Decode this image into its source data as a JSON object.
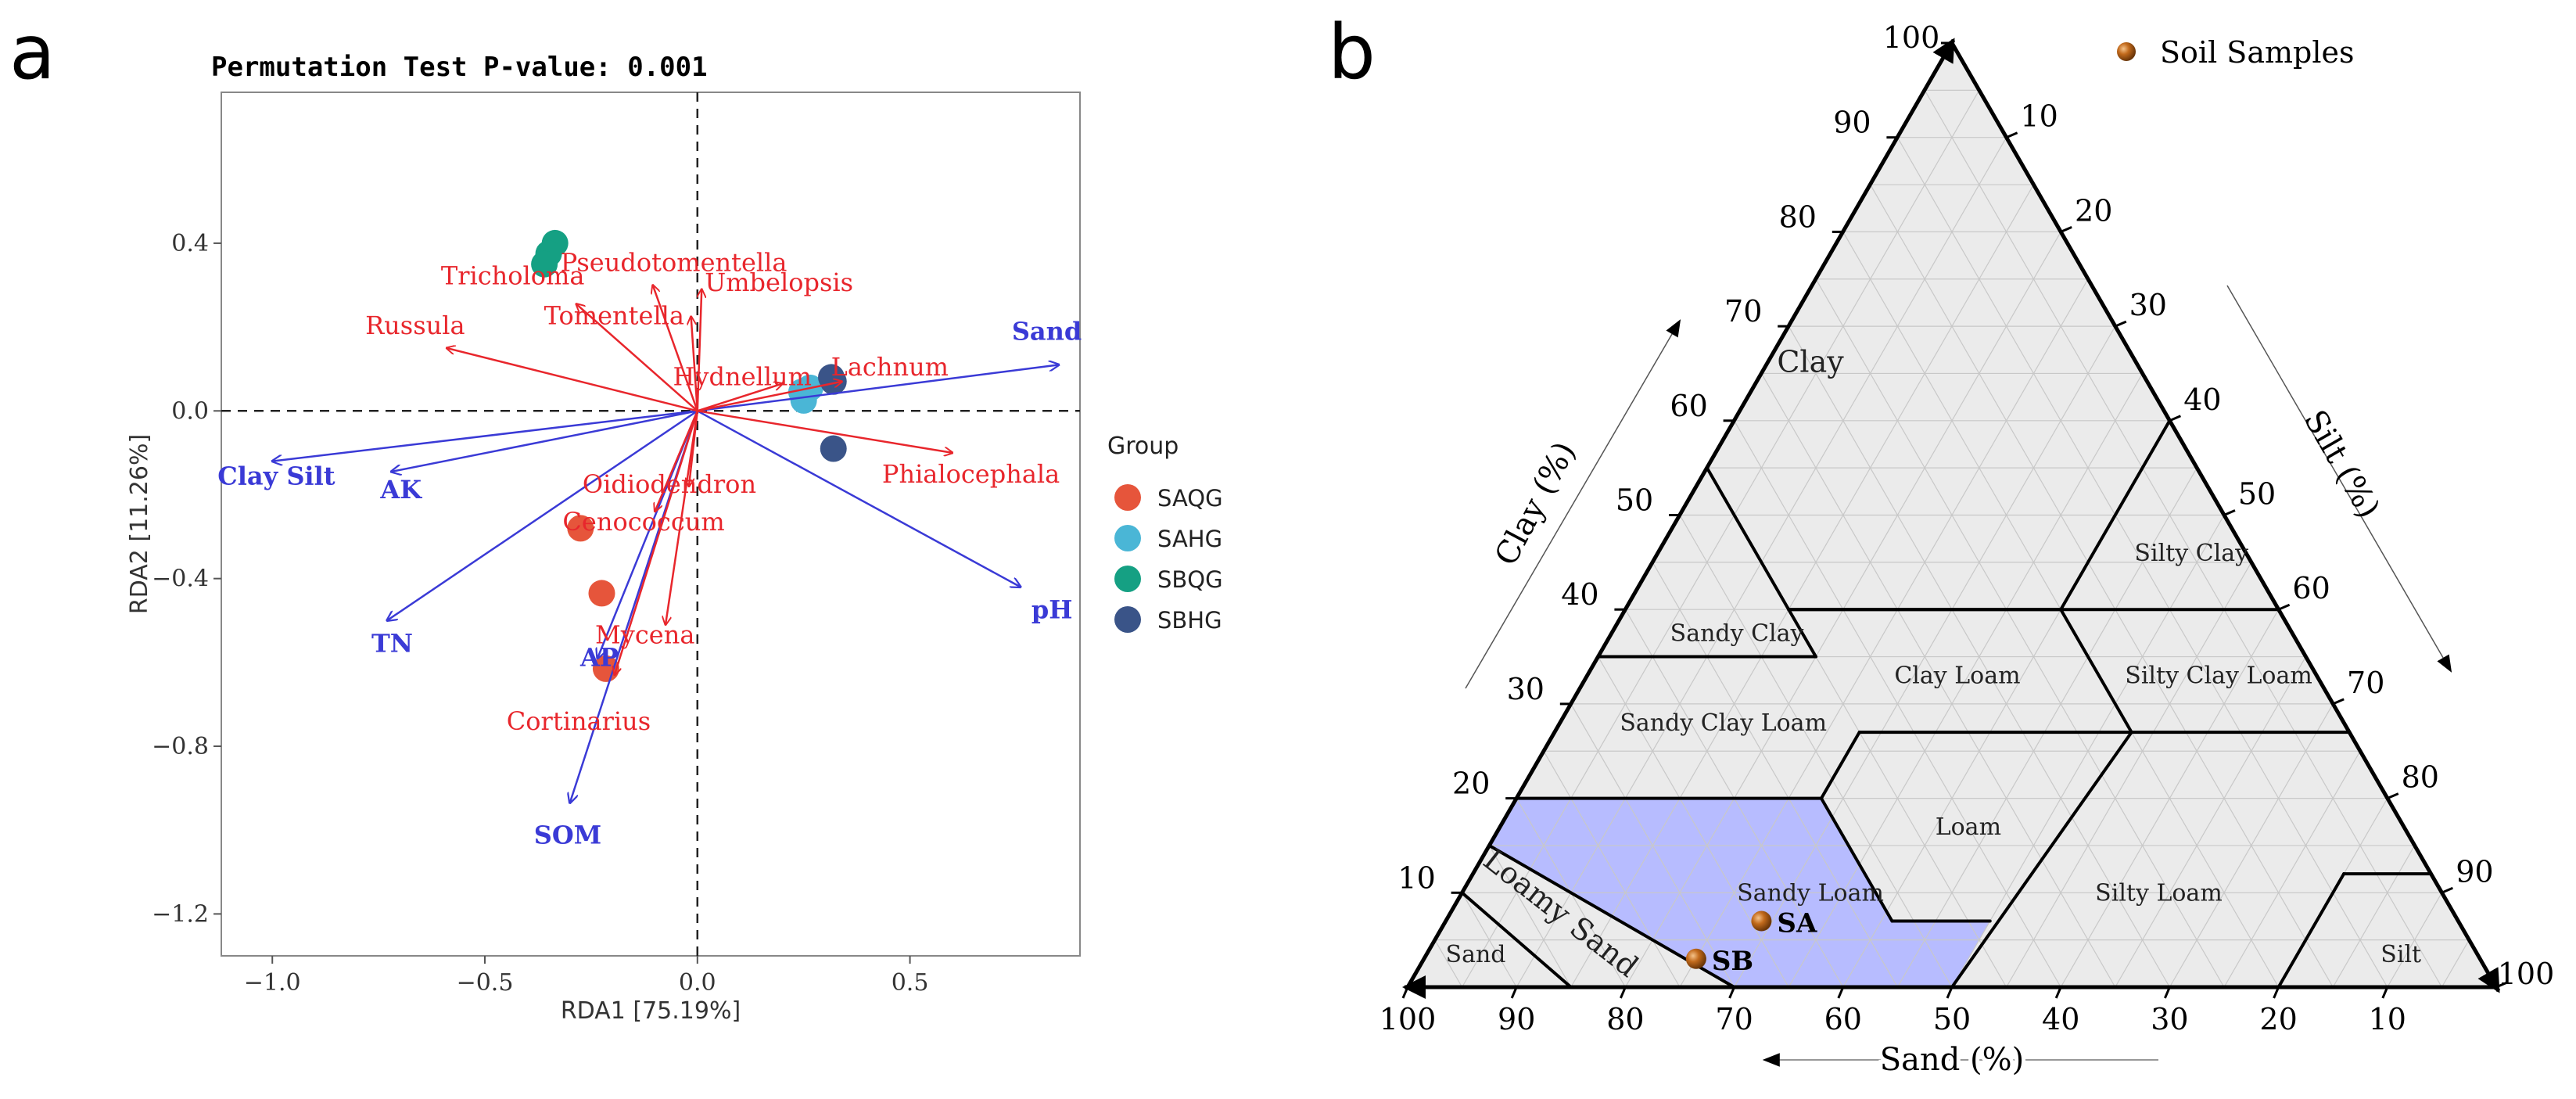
{
  "chart_data": [
    {
      "type": "scatter",
      "panel": "a",
      "title": "Permutation Test P-value: 0.001",
      "xlabel": "RDA1 [75.19%]",
      "ylabel": "RDA2 [11.26%]",
      "xlim": [
        -1.12,
        0.9
      ],
      "ylim": [
        -1.3,
        0.76
      ],
      "xticks": [
        -1.0,
        -0.5,
        0.0,
        0.5
      ],
      "xtick_labels": [
        "−1.0",
        "−0.5",
        "0.0",
        "0.5"
      ],
      "yticks": [
        0.4,
        0.0,
        -0.4,
        -0.8,
        -1.2
      ],
      "ytick_labels": [
        "0.4",
        "0.0",
        "−0.4",
        "−0.8",
        "−1.2"
      ],
      "reference_lines": {
        "x": 0,
        "y": 0,
        "style": "dashed"
      },
      "legend": {
        "title": "Group",
        "position": "right",
        "entries": [
          {
            "name": "SAQG",
            "color": "#e6553b"
          },
          {
            "name": "SAHG",
            "color": "#4ab6d6"
          },
          {
            "name": "SBQG",
            "color": "#15a083"
          },
          {
            "name": "SBHG",
            "color": "#3a5488"
          }
        ]
      },
      "points": [
        {
          "group": "SAQG",
          "x": -0.275,
          "y": -0.28
        },
        {
          "group": "SAQG",
          "x": -0.225,
          "y": -0.435
        },
        {
          "group": "SAQG",
          "x": -0.215,
          "y": -0.615
        },
        {
          "group": "SAHG",
          "x": 0.245,
          "y": 0.045
        },
        {
          "group": "SAHG",
          "x": 0.25,
          "y": 0.025
        },
        {
          "group": "SAHG",
          "x": 0.265,
          "y": 0.055
        },
        {
          "group": "SBQG",
          "x": -0.335,
          "y": 0.4
        },
        {
          "group": "SBQG",
          "x": -0.35,
          "y": 0.375
        },
        {
          "group": "SBQG",
          "x": -0.36,
          "y": 0.35
        },
        {
          "group": "SBHG",
          "x": 0.315,
          "y": 0.08
        },
        {
          "group": "SBHG",
          "x": 0.32,
          "y": 0.07
        },
        {
          "group": "SBHG",
          "x": 0.32,
          "y": -0.09
        }
      ],
      "species_color": "#e8262c",
      "species_vectors": [
        {
          "name": "Pseudotomentella",
          "x": -0.105,
          "y": 0.3
        },
        {
          "name": "Umbelopsis",
          "x": 0.01,
          "y": 0.29
        },
        {
          "name": "Tricholoma",
          "x": -0.285,
          "y": 0.255
        },
        {
          "name": "Russula",
          "x": -0.59,
          "y": 0.15
        },
        {
          "name": "Tomentella",
          "x": -0.015,
          "y": 0.225
        },
        {
          "name": "Hydnellum",
          "x": 0.2,
          "y": 0.065
        },
        {
          "name": "Lachnum",
          "x": 0.34,
          "y": 0.07
        },
        {
          "name": "Phialocephala",
          "x": 0.6,
          "y": -0.1
        },
        {
          "name": "Oidiodendron",
          "x": -0.02,
          "y": -0.18
        },
        {
          "name": "Cenococcum",
          "x": -0.1,
          "y": -0.24
        },
        {
          "name": "Mycena",
          "x": -0.075,
          "y": -0.51
        },
        {
          "name": "Cortinarius",
          "x": -0.195,
          "y": -0.63
        }
      ],
      "env_color": "#3a3ad6",
      "env_vectors": [
        {
          "name": "Sand",
          "x": 0.85,
          "y": 0.11
        },
        {
          "name": "pH",
          "x": 0.76,
          "y": -0.42
        },
        {
          "name": "Clay Silt",
          "x": -1.0,
          "y": -0.12
        },
        {
          "name": "AK",
          "x": -0.72,
          "y": -0.145
        },
        {
          "name": "TN",
          "x": -0.73,
          "y": -0.5
        },
        {
          "name": "AP",
          "x": -0.235,
          "y": -0.59
        },
        {
          "name": "SOM",
          "x": -0.3,
          "y": -0.935
        }
      ]
    },
    {
      "type": "ternary",
      "panel": "b",
      "axes": {
        "clay": {
          "title": "Clay (%)",
          "ticks": [
            10,
            20,
            30,
            40,
            50,
            60,
            70,
            80,
            90,
            100
          ]
        },
        "silt": {
          "title": "Silt (%)",
          "ticks": [
            10,
            20,
            30,
            40,
            50,
            60,
            70,
            80,
            90,
            100
          ]
        },
        "sand": {
          "title": "Sand (%)",
          "ticks": [
            100,
            90,
            80,
            70,
            60,
            50,
            40,
            30,
            20,
            10
          ]
        }
      },
      "regions": [
        "Clay",
        "Silty Clay",
        "Sandy Clay",
        "Clay Loam",
        "Silty Clay Loam",
        "Sandy Clay Loam",
        "Loam",
        "Sandy Loam",
        "Silty Loam",
        "Loamy Sand",
        "Sand",
        "Silt"
      ],
      "highlight_region": "Sandy Loam",
      "highlight_color": "#aab0ff",
      "sample_color": "#c26a1c",
      "legend": "Soil Samples",
      "samples": [
        {
          "name": "SA",
          "sand": 64,
          "silt": 29,
          "clay": 7
        },
        {
          "name": "SB",
          "sand": 72,
          "silt": 25,
          "clay": 3
        }
      ]
    }
  ]
}
